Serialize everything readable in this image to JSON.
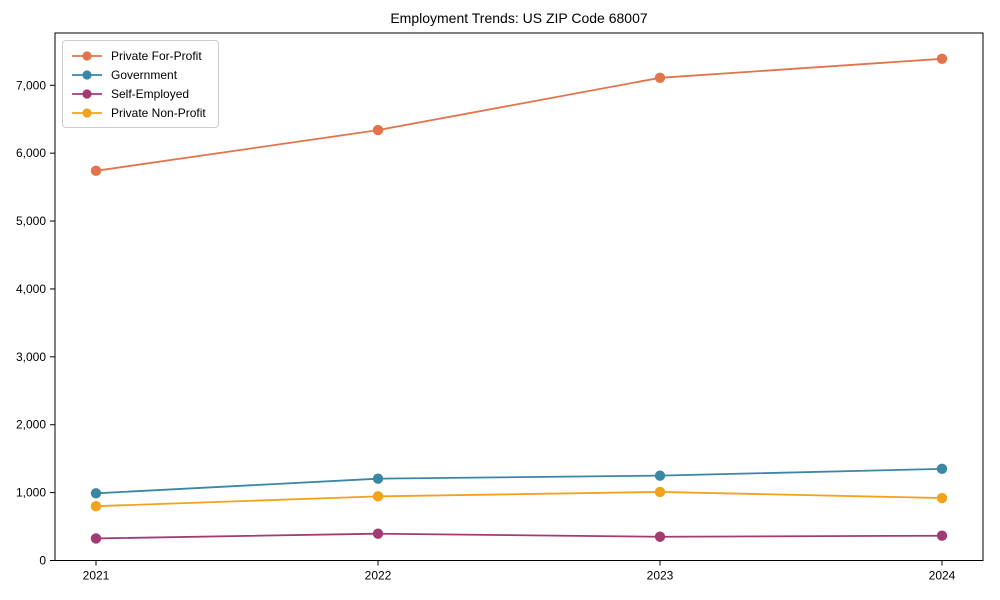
{
  "title": "Employment Trends: US ZIP Code 68007",
  "chart_data": {
    "type": "line",
    "title": "Employment Trends: US ZIP Code 68007",
    "xlabel": "",
    "ylabel": "",
    "x": [
      2021,
      2022,
      2023,
      2024
    ],
    "xtick_labels": [
      "2021",
      "2022",
      "2023",
      "2024"
    ],
    "yticks": [
      0,
      1000,
      2000,
      3000,
      4000,
      5000,
      6000,
      7000
    ],
    "ytick_labels": [
      "0",
      "1,000",
      "2,000",
      "3,000",
      "4,000",
      "5,000",
      "6,000",
      "7,000"
    ],
    "ylim": [
      0,
      7770
    ],
    "grid": false,
    "marker": "circle",
    "legend_position": "upper left",
    "series": [
      {
        "name": "Private For-Profit",
        "color": "#E2744B",
        "values": [
          5740,
          6340,
          7110,
          7390
        ]
      },
      {
        "name": "Government",
        "color": "#3A87A5",
        "values": [
          990,
          1205,
          1250,
          1350
        ]
      },
      {
        "name": "Self-Employed",
        "color": "#A23B72",
        "values": [
          325,
          395,
          350,
          365
        ]
      },
      {
        "name": "Private Non-Profit",
        "color": "#F3A21C",
        "values": [
          800,
          945,
          1010,
          920
        ]
      }
    ]
  }
}
